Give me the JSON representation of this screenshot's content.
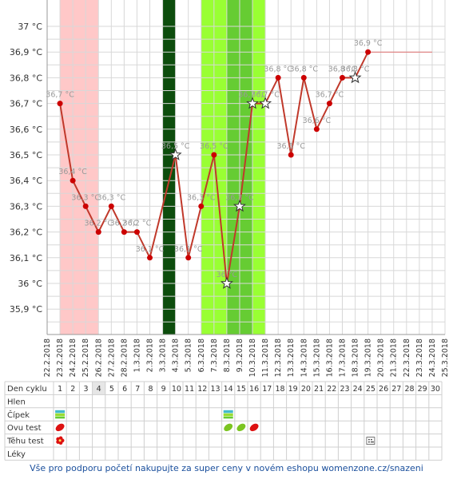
{
  "chart_data": {
    "type": "line",
    "title": "",
    "xlabel": "",
    "ylabel": "",
    "ylim": [
      35.8,
      37.05
    ],
    "y_ticks": [
      "35,9 °C",
      "36 °C",
      "36,1 °C",
      "36,2 °C",
      "36,3 °C",
      "36,4 °C",
      "36,5 °C",
      "36,6 °C",
      "36,7 °C",
      "36,8 °C",
      "36,9 °C",
      "37 °C"
    ],
    "y_tick_values": [
      35.9,
      36.0,
      36.1,
      36.2,
      36.3,
      36.4,
      36.5,
      36.6,
      36.7,
      36.8,
      36.9,
      37.0
    ],
    "x_dates": [
      "22.2.2018",
      "23.2.2018",
      "24.2.2018",
      "25.2.2018",
      "26.2.2018",
      "27.2.2018",
      "28.2.2018",
      "1.3.2018",
      "2.3.2018",
      "3.3.2018",
      "4.3.2018",
      "5.3.2018",
      "6.3.2018",
      "7.3.2018",
      "8.3.2018",
      "9.3.2018",
      "10.3.2018",
      "11.3.2018",
      "12.3.2018",
      "13.3.2018",
      "14.3.2018",
      "15.3.2018",
      "16.3.2018",
      "17.3.2018",
      "18.3.2018",
      "19.3.2018",
      "20.3.2018",
      "21.3.2018",
      "22.3.2018",
      "23.3.2018",
      "24.3.2018",
      "25.3.2018"
    ],
    "series": [
      {
        "points": [
          {
            "x": "23.2.2018",
            "y": 36.7,
            "label": "36,7 °C",
            "marker": "dot"
          },
          {
            "x": "24.2.2018",
            "y": 36.4,
            "label": "36,4 °C",
            "marker": "dot"
          },
          {
            "x": "25.2.2018",
            "y": 36.3,
            "label": "36,3 °C",
            "marker": "dot"
          },
          {
            "x": "26.2.2018",
            "y": 36.2,
            "label": "36,2 °C",
            "marker": "dot"
          },
          {
            "x": "27.2.2018",
            "y": 36.3,
            "label": "36,3 °C",
            "marker": "dot"
          },
          {
            "x": "28.2.2018",
            "y": 36.2,
            "label": "36,2 °C",
            "marker": "dot"
          },
          {
            "x": "1.3.2018",
            "y": 36.2,
            "label": "36,2 °C",
            "marker": "dot"
          },
          {
            "x": "2.3.2018",
            "y": 36.1,
            "label": "36,1 °C",
            "marker": "dot"
          },
          {
            "x": "4.3.2018",
            "y": 36.5,
            "label": "36,5 °C",
            "marker": "star"
          },
          {
            "x": "5.3.2018",
            "y": 36.1,
            "label": "36,1 °C",
            "marker": "dot"
          },
          {
            "x": "6.3.2018",
            "y": 36.3,
            "label": "36,3 °C",
            "marker": "dot"
          },
          {
            "x": "7.3.2018",
            "y": 36.5,
            "label": "36,5 °C",
            "marker": "dot"
          },
          {
            "x": "8.3.2018",
            "y": 36.0,
            "label": "36 °C",
            "marker": "star"
          },
          {
            "x": "9.3.2018",
            "y": 36.3,
            "label": "36,3 °C",
            "marker": "star"
          },
          {
            "x": "10.3.2018",
            "y": 36.7,
            "label": "36,7 °C",
            "marker": "star"
          },
          {
            "x": "11.3.2018",
            "y": 36.7,
            "label": "36,7 °C",
            "marker": "star"
          },
          {
            "x": "12.3.2018",
            "y": 36.8,
            "label": "36,8 °C",
            "marker": "dot"
          },
          {
            "x": "13.3.2018",
            "y": 36.5,
            "label": "36,5 °C",
            "marker": "dot"
          },
          {
            "x": "14.3.2018",
            "y": 36.8,
            "label": "36,8 °C",
            "marker": "dot"
          },
          {
            "x": "15.3.2018",
            "y": 36.6,
            "label": "36,6 °C",
            "marker": "dot"
          },
          {
            "x": "16.3.2018",
            "y": 36.7,
            "label": "36,7 °C",
            "marker": "dot"
          },
          {
            "x": "17.3.2018",
            "y": 36.8,
            "label": "36,8 °C",
            "marker": "dot"
          },
          {
            "x": "18.3.2018",
            "y": 36.8,
            "label": "36,8 °C",
            "marker": "star"
          },
          {
            "x": "19.3.2018",
            "y": 36.9,
            "label": "36,9 °C",
            "marker": "dot"
          }
        ]
      }
    ],
    "flat_line": {
      "from": "19.3.2018",
      "to": "24.3.2018",
      "y": 36.9,
      "color": "#e07070"
    },
    "bands": [
      {
        "from": "23.2.2018",
        "to": "25.2.2018",
        "color": "#ffc8c8"
      },
      {
        "from": "3.3.2018",
        "to": "3.3.2018",
        "color": "#0d4d0d"
      },
      {
        "from": "6.3.2018",
        "to": "10.3.2018",
        "color": "#99ff33"
      },
      {
        "from": "8.3.2018",
        "to": "9.3.2018",
        "color": "#66cc33"
      }
    ],
    "line_color": "#c0392b",
    "grid": true,
    "legend": "none"
  },
  "table": {
    "rows": [
      "Den cyklu",
      "Hlen",
      "Čípek",
      "Ovu test",
      "Těhu test",
      "Léky"
    ],
    "cycle_days": [
      "1",
      "2",
      "3",
      "4",
      "5",
      "6",
      "7",
      "8",
      "9",
      "10",
      "11",
      "12",
      "13",
      "14",
      "15",
      "16",
      "17",
      "18",
      "19",
      "20",
      "21",
      "22",
      "23",
      "24",
      "25",
      "26",
      "27",
      "28",
      "29",
      "30"
    ],
    "highlight_day": "4",
    "cervix_marks": [
      "1",
      "14"
    ],
    "ovu_leaves": [
      {
        "day": "1",
        "color": "#dd1111"
      },
      {
        "day": "14",
        "color": "#7cc522"
      },
      {
        "day": "15",
        "color": "#7cc522"
      },
      {
        "day": "16",
        "color": "#dd1111"
      }
    ],
    "pregnancy_flower_day": "1",
    "pregnancy_dots_day": "25"
  },
  "footer": "Vše pro podporu početí nakupujte za super ceny v novém eshopu womenzone.cz/snazeni"
}
